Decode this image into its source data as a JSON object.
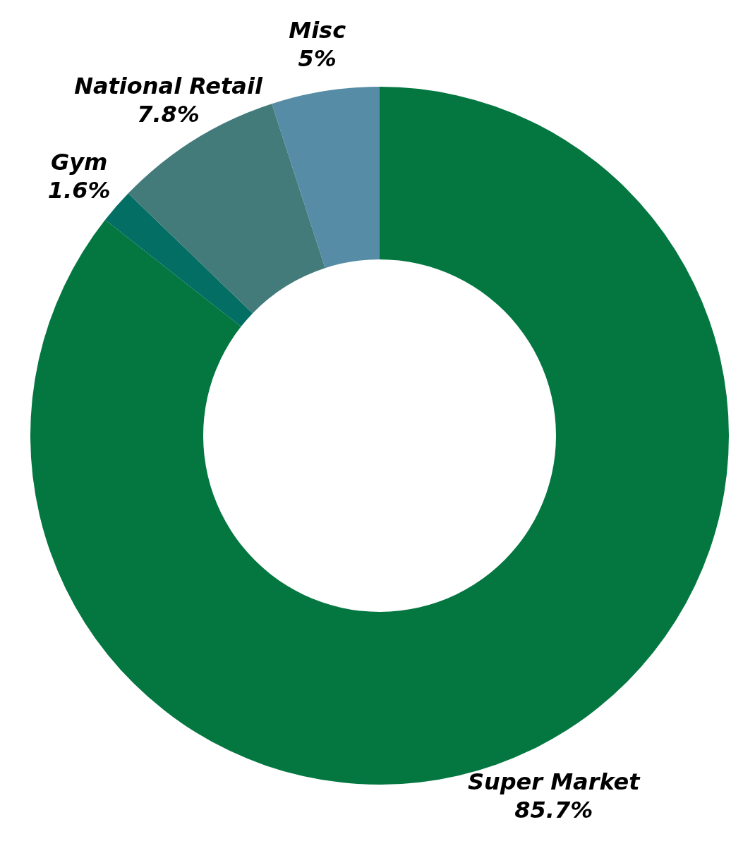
{
  "chart_data": {
    "type": "donut",
    "categories": [
      "Super Market",
      "Gym",
      "National Retail",
      "Misc"
    ],
    "values": [
      85.7,
      1.6,
      7.8,
      5
    ],
    "value_labels": [
      "85.7%",
      "1.6%",
      "7.8%",
      "5%"
    ],
    "colors": [
      "#047741",
      "#036e63",
      "#437b7b",
      "#568ca5"
    ],
    "legend": false
  }
}
